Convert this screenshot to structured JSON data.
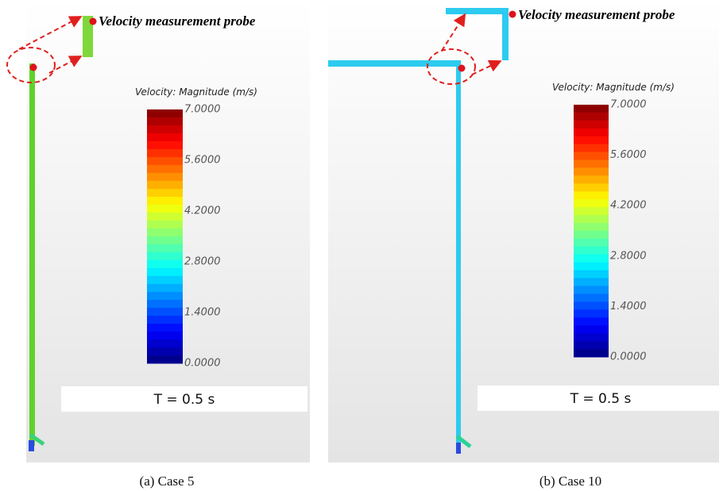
{
  "panels": [
    {
      "probe_label": "Velocity measurement probe",
      "colorbar_title": "Velocity: Magnitude (m/s)",
      "colorbar_ticks": [
        "7.0000",
        "5.6000",
        "4.2000",
        "2.8000",
        "1.4000",
        "0.0000"
      ],
      "time_label": "T = 0.5 s",
      "caption": "(a)  Case  5"
    },
    {
      "probe_label": "Velocity measurement probe",
      "colorbar_title": "Velocity: Magnitude (m/s)",
      "colorbar_ticks": [
        "7.0000",
        "5.6000",
        "4.2000",
        "2.8000",
        "1.4000",
        "0.0000"
      ],
      "time_label": "T = 0.5 s",
      "caption": "(b)  Case  10"
    }
  ]
}
